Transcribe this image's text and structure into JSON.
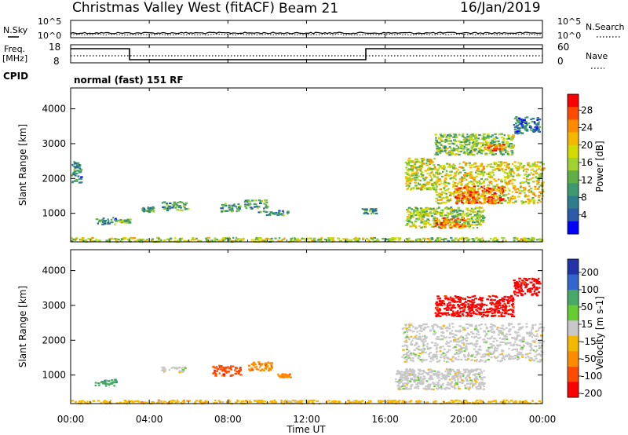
{
  "header": {
    "station": "Christmas Valley West (fitACF)",
    "beam": "Beam 21",
    "date": "16/Jan/2019"
  },
  "noise_panel": {
    "left_label": "N.Sky",
    "right_label": "N.Search",
    "left_ticks": [
      "10^5",
      "10^0"
    ],
    "right_ticks": [
      "10^5",
      "10^0"
    ]
  },
  "freq_panel": {
    "left_label_line1": "Freq.",
    "left_label_line2": "[MHz]",
    "right_label": "Nave",
    "left_ticks": [
      "18",
      "8"
    ],
    "right_ticks": [
      "60",
      "0"
    ],
    "cpid_label": "CPID",
    "cpid_value": "normal (fast) 151 RF"
  },
  "time_axis": {
    "label": "Time UT",
    "ticks": [
      "00:00",
      "04:00",
      "08:00",
      "12:00",
      "16:00",
      "20:00",
      "00:00"
    ]
  },
  "chart_data": [
    {
      "type": "heatmap",
      "name": "power",
      "ylabel": "Slant Range [km]",
      "yticks": [
        1000,
        2000,
        3000,
        4000
      ],
      "ylim": [
        180,
        4600
      ],
      "xlim_hours": [
        0,
        24
      ],
      "colorbar": {
        "label": "Power [dB]",
        "ticks": [
          "28",
          "24",
          "20",
          "16",
          "12",
          "8",
          "4"
        ],
        "colors": [
          "#ff0000",
          "#ff4a00",
          "#ff8c00",
          "#f5b800",
          "#d2dc00",
          "#a0d232",
          "#5faf46",
          "#3c9a6e",
          "#2e7d8c",
          "#2a5aa8",
          "#0000ff"
        ]
      },
      "blobs": [
        {
          "t0": 1.2,
          "t1": 2.3,
          "r0": 700,
          "r1": 900,
          "level": 0.25
        },
        {
          "t0": 2.4,
          "t1": 3.0,
          "r0": 750,
          "r1": 850,
          "level": 0.4
        },
        {
          "t0": 3.6,
          "t1": 4.2,
          "r0": 1050,
          "r1": 1200,
          "level": 0.3
        },
        {
          "t0": 4.6,
          "t1": 5.9,
          "r0": 1100,
          "r1": 1350,
          "level": 0.35
        },
        {
          "t0": 7.6,
          "t1": 8.6,
          "r0": 1050,
          "r1": 1300,
          "level": 0.3
        },
        {
          "t0": 8.8,
          "t1": 10.0,
          "r0": 1150,
          "r1": 1400,
          "level": 0.3
        },
        {
          "t0": 9.5,
          "t1": 11.0,
          "r0": 950,
          "r1": 1100,
          "level": 0.25
        },
        {
          "t0": 14.8,
          "t1": 15.5,
          "r0": 1000,
          "r1": 1150,
          "level": 0.3
        },
        {
          "t0": 17.0,
          "t1": 18.5,
          "r0": 1700,
          "r1": 2600,
          "level": 0.55
        },
        {
          "t0": 18.5,
          "t1": 24.0,
          "r0": 1300,
          "r1": 2500,
          "level": 0.6
        },
        {
          "t0": 19.5,
          "t1": 22.0,
          "r0": 1300,
          "r1": 1800,
          "level": 0.85
        },
        {
          "t0": 17.0,
          "t1": 21.0,
          "r0": 600,
          "r1": 1200,
          "level": 0.5
        },
        {
          "t0": 18.5,
          "t1": 20.0,
          "r0": 600,
          "r1": 900,
          "level": 0.8
        },
        {
          "t0": 18.5,
          "t1": 22.5,
          "r0": 2700,
          "r1": 3300,
          "level": 0.45
        },
        {
          "t0": 21.0,
          "t1": 22.0,
          "r0": 2800,
          "r1": 3000,
          "level": 0.9
        },
        {
          "t0": 22.5,
          "t1": 23.8,
          "r0": 3300,
          "r1": 3800,
          "level": 0.2
        },
        {
          "t0": 0.0,
          "t1": 24.0,
          "r0": 200,
          "r1": 320,
          "level": 0.55
        },
        {
          "t0": 0.0,
          "t1": 0.5,
          "r0": 1900,
          "r1": 2500,
          "level": 0.25
        }
      ]
    },
    {
      "type": "heatmap",
      "name": "velocity",
      "ylabel": "Slant Range [km]",
      "yticks": [
        1000,
        2000,
        3000,
        4000
      ],
      "ylim": [
        180,
        4600
      ],
      "xlim_hours": [
        0,
        24
      ],
      "colorbar": {
        "label": "Velocity [m s-1]",
        "ticks": [
          "200",
          "100",
          "50",
          "15",
          "-15",
          "-50",
          "-100",
          "-200"
        ],
        "colors": [
          "#2233aa",
          "#3366cc",
          "#44aa66",
          "#66cc33",
          "#c8c8c8",
          "#f5b800",
          "#ff8c00",
          "#ff4a00",
          "#ff0000"
        ]
      },
      "blobs": [
        {
          "t0": 1.2,
          "t1": 2.3,
          "r0": 700,
          "r1": 900,
          "class": "+50"
        },
        {
          "t0": 4.6,
          "t1": 5.8,
          "r0": 1100,
          "r1": 1250,
          "class": "0"
        },
        {
          "t0": 7.2,
          "t1": 8.6,
          "r0": 1000,
          "r1": 1300,
          "class": "-100"
        },
        {
          "t0": 9.0,
          "t1": 10.2,
          "r0": 1150,
          "r1": 1400,
          "class": "-50"
        },
        {
          "t0": 10.5,
          "t1": 11.2,
          "r0": 950,
          "r1": 1050,
          "class": "-50"
        },
        {
          "t0": 16.8,
          "t1": 24.0,
          "r0": 1400,
          "r1": 2500,
          "class": "0"
        },
        {
          "t0": 16.5,
          "t1": 21.0,
          "r0": 600,
          "r1": 1200,
          "class": "0"
        },
        {
          "t0": 18.5,
          "t1": 22.5,
          "r0": 2700,
          "r1": 3300,
          "class": "-200"
        },
        {
          "t0": 22.5,
          "t1": 23.8,
          "r0": 3300,
          "r1": 3800,
          "class": "-200"
        },
        {
          "t0": 0.0,
          "t1": 24.0,
          "r0": 200,
          "r1": 300,
          "class": "-15"
        }
      ]
    }
  ]
}
